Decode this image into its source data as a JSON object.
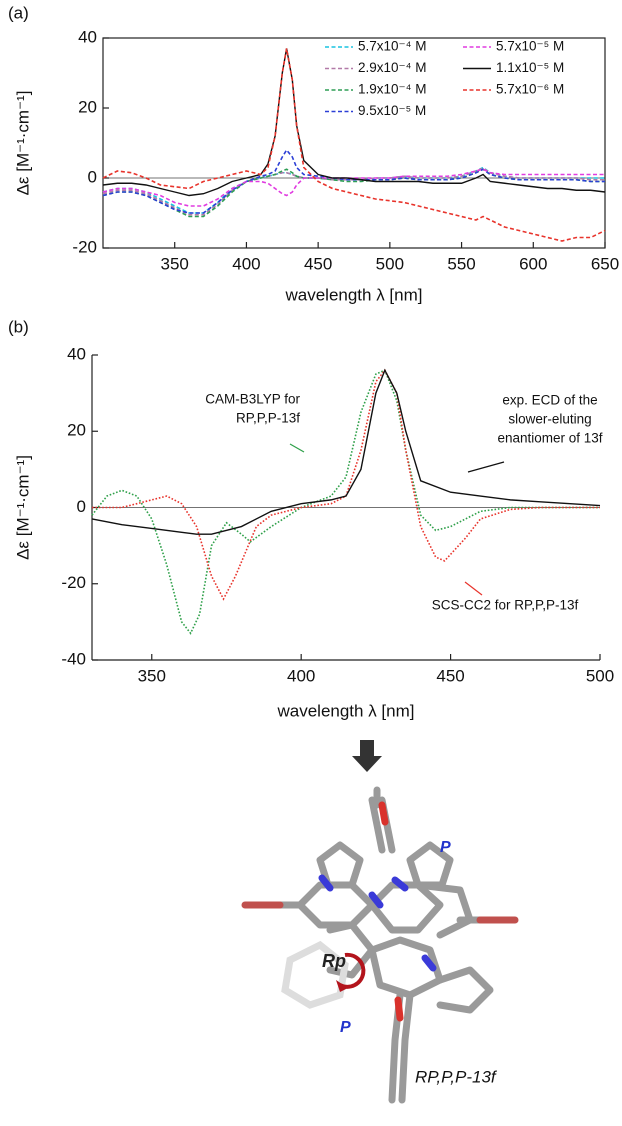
{
  "chart_data": [
    {
      "type": "line",
      "panel_label": "(a)",
      "xlabel": "wavelength λ [nm]",
      "ylabel": "Δε [M⁻¹·cm⁻¹]",
      "xlim": [
        300,
        650
      ],
      "xticks": [
        350,
        400,
        450,
        500,
        550,
        600,
        650
      ],
      "ylim": [
        -20,
        40
      ],
      "yticks": [
        -20,
        0,
        20,
        40
      ],
      "legend": "top-right",
      "x": [
        300,
        310,
        320,
        330,
        340,
        350,
        360,
        370,
        380,
        390,
        400,
        410,
        415,
        420,
        425,
        428,
        432,
        435,
        440,
        450,
        460,
        470,
        480,
        490,
        500,
        510,
        520,
        530,
        540,
        550,
        560,
        565,
        570,
        580,
        590,
        600,
        610,
        620,
        630,
        640,
        650
      ],
      "series": [
        {
          "name": "5.7x10⁻⁴ M",
          "color": "#19c3e0",
          "style": "dashed",
          "values": [
            -4,
            -3,
            -3,
            -4,
            -6,
            -8,
            -10,
            -10,
            -7,
            -3,
            -1,
            0,
            0.5,
            1,
            1.5,
            1.5,
            1,
            0.5,
            0,
            0,
            -0.5,
            -0.5,
            -0.5,
            0,
            0,
            0.5,
            0,
            0,
            0,
            0.5,
            2,
            3,
            1.5,
            0.5,
            0,
            0,
            0,
            0,
            0,
            0,
            0
          ]
        },
        {
          "name": "2.9x10⁻⁴ M",
          "color": "#b27aa8",
          "style": "dashed",
          "values": [
            -4.5,
            -3.5,
            -3.5,
            -4.5,
            -6.5,
            -8.5,
            -10.5,
            -10.5,
            -7.5,
            -3.5,
            -1,
            0,
            0.5,
            1,
            1.5,
            1.5,
            1,
            0.5,
            0,
            0,
            -0.5,
            -0.5,
            -0.5,
            0,
            0,
            0.5,
            0,
            0,
            0,
            0.5,
            2,
            2.8,
            1.5,
            0.5,
            0,
            0,
            0,
            0,
            0,
            -0.5,
            -0.5
          ]
        },
        {
          "name": "1.9x10⁻⁴ M",
          "color": "#2e9e55",
          "style": "dashed",
          "values": [
            -5,
            -4,
            -4,
            -5,
            -7,
            -9,
            -11,
            -11,
            -8,
            -4,
            -1,
            0,
            0.5,
            1,
            2,
            2.5,
            1.5,
            0.5,
            0,
            0,
            -0.5,
            -1,
            -1,
            -0.5,
            -0.5,
            0,
            -0.5,
            -0.5,
            -0.5,
            0,
            1.5,
            2.5,
            1,
            0,
            -0.5,
            -0.5,
            -0.5,
            -0.5,
            -0.5,
            -1,
            -1
          ]
        },
        {
          "name": "9.5x10⁻⁵ M",
          "color": "#2c3fd6",
          "style": "dashed",
          "values": [
            -5,
            -4,
            -4,
            -5,
            -7,
            -9,
            -10,
            -10,
            -7,
            -3.5,
            -1,
            0.5,
            1,
            2,
            6,
            8,
            6,
            3,
            1,
            0.5,
            0,
            -0.5,
            -0.5,
            -0.5,
            -0.5,
            0,
            -0.5,
            -0.5,
            -0.5,
            0,
            1.5,
            2.5,
            1,
            0,
            -0.5,
            -0.5,
            -0.5,
            -0.5,
            -0.5,
            -1,
            -1
          ]
        },
        {
          "name": "5.7x10⁻⁵ M",
          "color": "#e03ce0",
          "style": "dashed",
          "values": [
            -4,
            -3,
            -3,
            -4,
            -5,
            -7,
            -8,
            -8,
            -6,
            -3,
            -1,
            -1,
            -1.5,
            -3,
            -4.5,
            -5,
            -4,
            -2,
            0,
            0,
            0,
            0,
            0,
            0,
            0,
            0.5,
            0.5,
            0.5,
            0.5,
            1,
            2,
            2.5,
            1.5,
            1,
            1,
            1,
            1,
            1,
            1,
            1,
            1
          ]
        },
        {
          "name": "1.1x10⁻⁵ M",
          "color": "#111111",
          "style": "solid",
          "values": [
            -2,
            -1.5,
            -1.5,
            -2,
            -3,
            -4,
            -5,
            -4.5,
            -3,
            -1,
            0,
            1,
            4,
            12,
            30,
            37,
            28,
            15,
            5,
            1,
            0,
            0,
            -0.5,
            -1,
            -1,
            -1,
            -1,
            -1.5,
            -1.5,
            -1.5,
            0,
            1,
            -1,
            -1.5,
            -2,
            -2.5,
            -3,
            -3,
            -3.5,
            -3.5,
            -4
          ]
        },
        {
          "name": "5.7x10⁻⁶ M",
          "color": "#e8342c",
          "style": "dashed",
          "values": [
            0,
            2,
            1.5,
            0,
            -2,
            -2.5,
            -3,
            -1,
            0,
            1,
            2,
            1,
            3,
            12,
            30,
            37,
            28,
            15,
            3,
            -1,
            -3,
            -4,
            -5,
            -6,
            -6.5,
            -7,
            -8,
            -9,
            -10,
            -11,
            -12,
            -11,
            -12,
            -14,
            -15,
            -16,
            -17,
            -18,
            -17,
            -17,
            -15
          ]
        }
      ]
    },
    {
      "type": "line",
      "panel_label": "(b)",
      "xlabel": "wavelength λ [nm]",
      "ylabel": "Δε [M⁻¹·cm⁻¹]",
      "xlim": [
        330,
        500
      ],
      "xticks": [
        350,
        400,
        450,
        500
      ],
      "ylim": [
        -40,
        40
      ],
      "yticks": [
        -40,
        -20,
        0,
        20,
        40
      ],
      "series": [
        {
          "color": "#2fa04a",
          "style": "dotted",
          "x": [
            330,
            335,
            340,
            345,
            350,
            355,
            360,
            363,
            366,
            370,
            375,
            380,
            383,
            390,
            400,
            410,
            415,
            420,
            425,
            428,
            432,
            435,
            440,
            445,
            450,
            460,
            470,
            480,
            490,
            500
          ],
          "values": [
            -2,
            3,
            4.5,
            3,
            -3,
            -15,
            -30,
            -33,
            -28,
            -10,
            -4,
            -7,
            -9,
            -5,
            0,
            3,
            8,
            25,
            35,
            36,
            28,
            15,
            -2,
            -6,
            -5,
            -1,
            0,
            0,
            0,
            0
          ]
        },
        {
          "color": "#e8342c",
          "style": "dotted",
          "x": [
            330,
            340,
            345,
            350,
            355,
            360,
            365,
            370,
            374,
            378,
            385,
            390,
            400,
            410,
            415,
            420,
            425,
            428,
            432,
            435,
            440,
            445,
            448,
            455,
            460,
            470,
            480,
            500
          ],
          "values": [
            0,
            0,
            1,
            2,
            3,
            1,
            -5,
            -18,
            -24,
            -18,
            -5,
            -2,
            0,
            1,
            3,
            15,
            33,
            36,
            30,
            15,
            -5,
            -13,
            -14,
            -8,
            -3,
            -0.5,
            0,
            0
          ]
        },
        {
          "color": "#111111",
          "style": "solid",
          "x": [
            330,
            340,
            350,
            360,
            365,
            370,
            380,
            390,
            400,
            410,
            415,
            420,
            425,
            428,
            432,
            435,
            440,
            450,
            460,
            470,
            480,
            490,
            500
          ],
          "values": [
            -3,
            -4.5,
            -5.5,
            -6.5,
            -7,
            -7,
            -5,
            -1,
            1,
            2,
            3,
            10,
            30,
            36,
            30,
            20,
            7,
            4,
            3,
            2,
            1.5,
            1,
            0.5
          ]
        }
      ],
      "annotations": [
        {
          "lines": [
            "CAM-B3LYP for",
            "RP,P,P-13f"
          ]
        },
        {
          "lines": [
            "exp. ECD of the",
            "slower-eluting",
            "enantiomer of 13f"
          ]
        },
        {
          "lines": [
            "SCS-CC2 for RP,P,P-13f"
          ]
        }
      ]
    }
  ],
  "structure": {
    "labels": [
      "P",
      "Rp",
      "P"
    ],
    "caption": "RP,P,P-13f"
  }
}
